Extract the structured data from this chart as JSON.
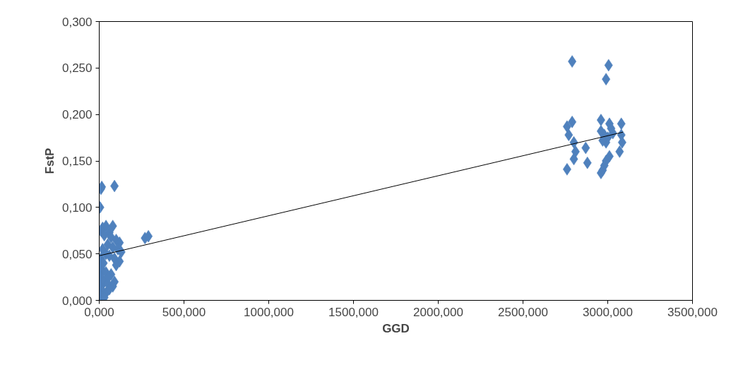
{
  "chart_data": {
    "type": "scatter",
    "xlabel": "GGD",
    "ylabel": "FstP",
    "marker": "diamond",
    "grid": false,
    "xlim": [
      0,
      3500
    ],
    "ylim": [
      0,
      0.3
    ],
    "xticks": [
      {
        "value": 0,
        "label": "0,000"
      },
      {
        "value": 500,
        "label": "500,000"
      },
      {
        "value": 1000,
        "label": "1000,000"
      },
      {
        "value": 1500,
        "label": "1500,000"
      },
      {
        "value": 2000,
        "label": "2000,000"
      },
      {
        "value": 2500,
        "label": "2500,000"
      },
      {
        "value": 3000,
        "label": "3000,000"
      },
      {
        "value": 3500,
        "label": "3500,000"
      }
    ],
    "yticks": [
      {
        "value": 0,
        "label": "0,000"
      },
      {
        "value": 0.05,
        "label": "0,050"
      },
      {
        "value": 0.1,
        "label": "0,100"
      },
      {
        "value": 0.15,
        "label": "0,150"
      },
      {
        "value": 0.2,
        "label": "0,200"
      },
      {
        "value": 0.25,
        "label": "0,250"
      },
      {
        "value": 0.3,
        "label": "0,300"
      }
    ],
    "series": [
      {
        "color": "#4f81bd",
        "x": [
          5,
          10,
          15,
          90,
          270,
          290,
          10,
          20,
          40,
          80,
          60,
          30,
          70,
          100,
          120,
          50,
          80,
          110,
          130,
          20,
          40,
          60,
          90,
          120,
          100,
          10,
          5,
          20,
          40,
          70,
          90,
          10,
          30,
          50,
          80,
          5,
          20,
          40,
          60,
          10,
          30,
          55,
          25,
          2790,
          2990,
          3005,
          2760,
          2790,
          2770,
          2800,
          2810,
          2800,
          2760,
          2870,
          2880,
          2960,
          2960,
          2980,
          2990,
          3010,
          3020,
          3000,
          2970,
          2990,
          2980,
          2960,
          2970,
          3010,
          3080,
          3080,
          3085,
          3070,
          3030
        ],
        "values": [
          0.1,
          0.12,
          0.122,
          0.123,
          0.067,
          0.069,
          0.075,
          0.078,
          0.08,
          0.08,
          0.073,
          0.07,
          0.068,
          0.065,
          0.062,
          0.06,
          0.057,
          0.055,
          0.052,
          0.055,
          0.05,
          0.048,
          0.045,
          0.042,
          0.038,
          0.045,
          0.035,
          0.032,
          0.03,
          0.028,
          0.02,
          0.025,
          0.02,
          0.018,
          0.015,
          0.015,
          0.01,
          0.008,
          0.012,
          0.005,
          0.003,
          0.025,
          0.04,
          0.257,
          0.238,
          0.253,
          0.187,
          0.192,
          0.178,
          0.17,
          0.16,
          0.152,
          0.141,
          0.164,
          0.148,
          0.194,
          0.182,
          0.178,
          0.17,
          0.19,
          0.185,
          0.175,
          0.172,
          0.15,
          0.145,
          0.137,
          0.14,
          0.155,
          0.19,
          0.178,
          0.17,
          0.16,
          0.18
        ]
      },
      {
        "type": "line",
        "color": "#000000",
        "marker": "none",
        "x": [
          0,
          3090
        ],
        "values": [
          0.048,
          0.181
        ]
      }
    ]
  }
}
